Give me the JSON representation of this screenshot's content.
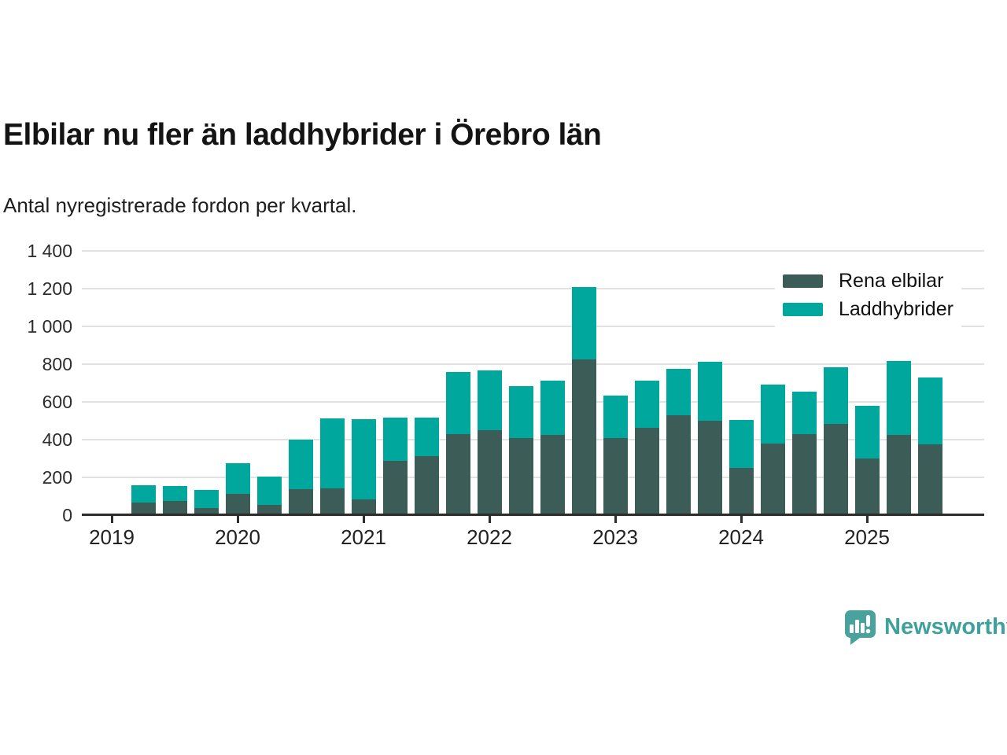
{
  "header": {
    "title": "Elbilar nu fler än laddhybrider i Örebro län",
    "subtitle": "Antal nyregistrerade fordon per kvartal."
  },
  "legend": [
    {
      "label": "Rena elbilar",
      "color": "#3b5c57"
    },
    {
      "label": "Laddhybrider",
      "color": "#00a79c"
    }
  ],
  "footer": {
    "brand": "Newsworthy",
    "brand_color": "#3fa19c",
    "logo_icon": "newsworthy-speech-bubble-bar-chart"
  },
  "chart_data": {
    "type": "bar",
    "stacked": true,
    "title": "Elbilar nu fler än laddhybrider i Örebro län",
    "subtitle": "Antal nyregistrerade fordon per kvartal.",
    "xlabel": "",
    "ylabel": "",
    "ylim": [
      0,
      1400
    ],
    "grid": true,
    "legend_position": "top-right",
    "x": [
      "2019 Q2",
      "2019 Q3",
      "2019 Q4",
      "2020 Q1",
      "2020 Q2",
      "2020 Q3",
      "2020 Q4",
      "2021 Q1",
      "2021 Q2",
      "2021 Q3",
      "2021 Q4",
      "2022 Q1",
      "2022 Q2",
      "2022 Q3",
      "2022 Q4",
      "2023 Q1",
      "2023 Q2",
      "2023 Q3",
      "2023 Q4",
      "2024 Q1",
      "2024 Q2",
      "2024 Q3",
      "2024 Q4",
      "2025 Q1",
      "2025 Q2",
      "2025 Q3"
    ],
    "series": [
      {
        "name": "Rena elbilar",
        "color": "#3b5c57",
        "values": [
          60,
          65,
          30,
          105,
          45,
          130,
          135,
          75,
          280,
          305,
          420,
          440,
          400,
          415,
          815,
          400,
          455,
          520,
          490,
          240,
          370,
          420,
          475,
          290,
          415,
          365
        ]
      },
      {
        "name": "Laddhybrider",
        "color": "#00a79c",
        "values": [
          90,
          80,
          95,
          160,
          150,
          260,
          370,
          425,
          230,
          205,
          330,
          320,
          275,
          290,
          385,
          225,
          250,
          245,
          315,
          255,
          315,
          225,
          300,
          280,
          395,
          355
        ]
      }
    ],
    "ytick_values": [
      0,
      200,
      400,
      600,
      800,
      1000,
      1200,
      1400
    ],
    "ytick_labels": [
      "0",
      "200",
      "400",
      "600",
      "800",
      "1 000",
      "1 200",
      "1 400"
    ],
    "xtick_labels": [
      "2019",
      "2020",
      "2021",
      "2022",
      "2023",
      "2024",
      "2025"
    ]
  }
}
